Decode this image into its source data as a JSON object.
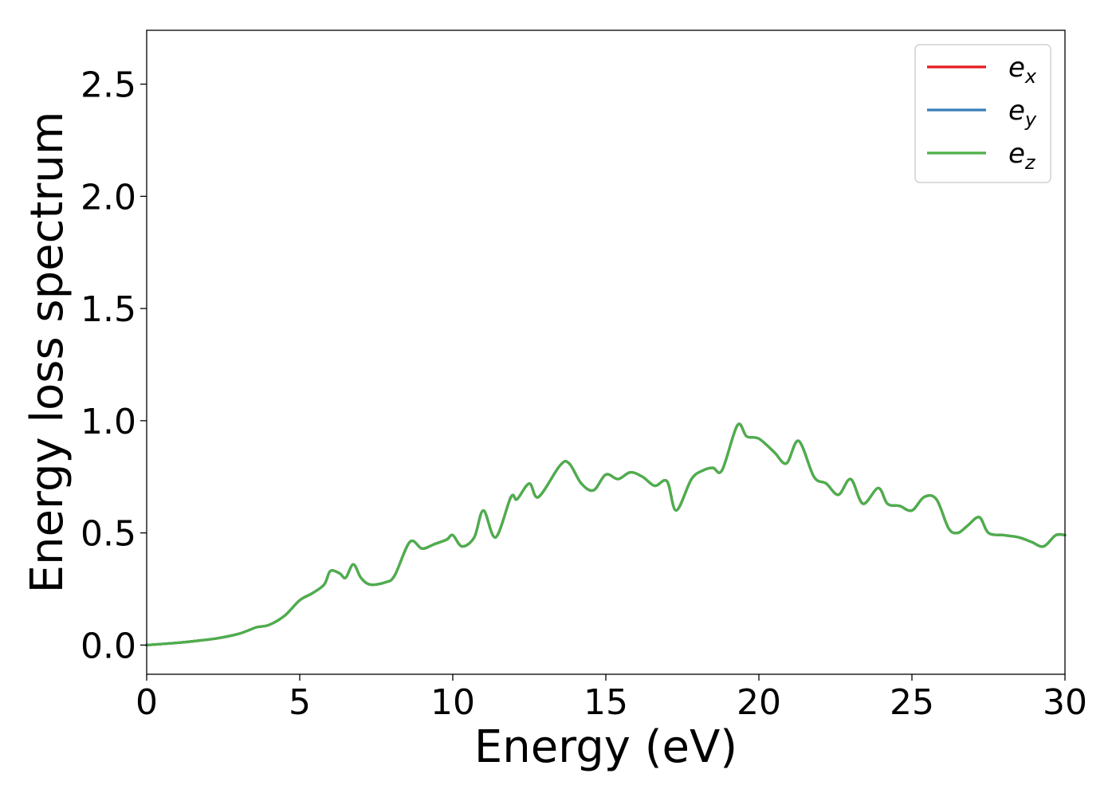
{
  "chart_data": {
    "type": "line",
    "title": "",
    "xlabel": "Energy (eV)",
    "ylabel": "Energy loss spectrum",
    "xlim": [
      0,
      30
    ],
    "ylim": [
      -0.13,
      2.74
    ],
    "xticks": [
      0,
      5,
      10,
      15,
      20,
      25,
      30
    ],
    "xtick_labels": [
      "0",
      "5",
      "10",
      "15",
      "20",
      "25",
      "30"
    ],
    "yticks": [
      0.0,
      0.5,
      1.0,
      1.5,
      2.0,
      2.5
    ],
    "ytick_labels": [
      "0.0",
      "0.5",
      "1.0",
      "1.5",
      "2.0",
      "2.5"
    ],
    "grid": false,
    "legend_position": "top-right",
    "series": [
      {
        "name": "e_x",
        "legend_base": "e",
        "legend_sub": "x",
        "color": "#e41a1c",
        "x": [
          0,
          1,
          1.7,
          2.3,
          3,
          3.4,
          3.6,
          4,
          4.5,
          5,
          5.4,
          5.8,
          6.0,
          6.3,
          6.5,
          6.75,
          7.0,
          7.3,
          7.8,
          8.1,
          8.6,
          9.0,
          9.4,
          9.8,
          10.0,
          10.3,
          10.7,
          11.0,
          11.4,
          11.9,
          12.1,
          12.5,
          12.8,
          13.5,
          13.8,
          14.2,
          14.6,
          15.0,
          15.4,
          15.8,
          16.2,
          16.6,
          17.0,
          17.3,
          17.8,
          18.2,
          18.5,
          18.8,
          19.3,
          19.6,
          20.0,
          20.5,
          20.9,
          21.3,
          21.8,
          22.2,
          22.6,
          23.0,
          23.4,
          23.9,
          24.2,
          24.6,
          25.0,
          25.4,
          25.8,
          26.2,
          26.5,
          26.8,
          27.2,
          27.5,
          28.0,
          28.5,
          28.9,
          29.3,
          29.7,
          30.0
        ],
        "y": [
          0.0,
          0.01,
          0.02,
          0.03,
          0.05,
          0.07,
          0.08,
          0.09,
          0.13,
          0.2,
          0.23,
          0.27,
          0.33,
          0.32,
          0.3,
          0.36,
          0.3,
          0.27,
          0.28,
          0.31,
          0.46,
          0.43,
          0.45,
          0.47,
          0.49,
          0.44,
          0.48,
          0.6,
          0.48,
          0.66,
          0.65,
          0.72,
          0.66,
          0.8,
          0.81,
          0.72,
          0.69,
          0.76,
          0.74,
          0.77,
          0.75,
          0.71,
          0.73,
          0.6,
          0.74,
          0.78,
          0.79,
          0.78,
          0.98,
          0.93,
          0.92,
          0.86,
          0.81,
          0.91,
          0.75,
          0.72,
          0.67,
          0.74,
          0.63,
          0.7,
          0.63,
          0.62,
          0.6,
          0.66,
          0.65,
          0.52,
          0.5,
          0.53,
          0.57,
          0.5,
          0.49,
          0.48,
          0.46,
          0.44,
          0.49,
          0.49
        ]
      },
      {
        "name": "e_y",
        "legend_base": "e",
        "legend_sub": "y",
        "color": "#377eb8",
        "x": [
          0,
          1,
          1.7,
          2.3,
          3,
          3.4,
          3.6,
          4,
          4.5,
          5,
          5.4,
          5.8,
          6.0,
          6.3,
          6.5,
          6.75,
          7.0,
          7.3,
          7.8,
          8.1,
          8.6,
          9.0,
          9.4,
          9.8,
          10.0,
          10.3,
          10.7,
          11.0,
          11.4,
          11.9,
          12.1,
          12.5,
          12.8,
          13.5,
          13.8,
          14.2,
          14.6,
          15.0,
          15.4,
          15.8,
          16.2,
          16.6,
          17.0,
          17.3,
          17.8,
          18.2,
          18.5,
          18.8,
          19.3,
          19.6,
          20.0,
          20.5,
          20.9,
          21.3,
          21.8,
          22.2,
          22.6,
          23.0,
          23.4,
          23.9,
          24.2,
          24.6,
          25.0,
          25.4,
          25.8,
          26.2,
          26.5,
          26.8,
          27.2,
          27.5,
          28.0,
          28.5,
          28.9,
          29.3,
          29.7,
          30.0
        ],
        "y": [
          0.0,
          0.01,
          0.02,
          0.03,
          0.05,
          0.07,
          0.08,
          0.09,
          0.13,
          0.2,
          0.23,
          0.27,
          0.33,
          0.32,
          0.3,
          0.36,
          0.3,
          0.27,
          0.28,
          0.31,
          0.46,
          0.43,
          0.45,
          0.47,
          0.49,
          0.44,
          0.48,
          0.6,
          0.48,
          0.66,
          0.65,
          0.72,
          0.66,
          0.8,
          0.81,
          0.72,
          0.69,
          0.76,
          0.74,
          0.77,
          0.75,
          0.71,
          0.73,
          0.6,
          0.74,
          0.78,
          0.79,
          0.78,
          0.98,
          0.93,
          0.92,
          0.86,
          0.81,
          0.91,
          0.75,
          0.72,
          0.67,
          0.74,
          0.63,
          0.7,
          0.63,
          0.62,
          0.6,
          0.66,
          0.65,
          0.52,
          0.5,
          0.53,
          0.57,
          0.5,
          0.49,
          0.48,
          0.46,
          0.44,
          0.49,
          0.49
        ]
      },
      {
        "name": "e_z",
        "legend_base": "e",
        "legend_sub": "z",
        "color": "#4daf4a",
        "x": [
          0,
          1,
          1.7,
          2.3,
          3,
          3.4,
          3.6,
          4,
          4.5,
          5,
          5.4,
          5.8,
          6.0,
          6.3,
          6.5,
          6.75,
          7.0,
          7.3,
          7.8,
          8.1,
          8.6,
          9.0,
          9.4,
          9.8,
          10.0,
          10.3,
          10.7,
          11.0,
          11.4,
          11.9,
          12.1,
          12.5,
          12.8,
          13.5,
          13.8,
          14.2,
          14.6,
          15.0,
          15.4,
          15.8,
          16.2,
          16.6,
          17.0,
          17.3,
          17.8,
          18.2,
          18.5,
          18.8,
          19.3,
          19.6,
          20.0,
          20.5,
          20.9,
          21.3,
          21.8,
          22.2,
          22.6,
          23.0,
          23.4,
          23.9,
          24.2,
          24.6,
          25.0,
          25.4,
          25.8,
          26.2,
          26.5,
          26.8,
          27.2,
          27.5,
          28.0,
          28.5,
          28.9,
          29.3,
          29.7,
          30.0
        ],
        "y": [
          0.0,
          0.01,
          0.02,
          0.03,
          0.05,
          0.07,
          0.08,
          0.09,
          0.13,
          0.2,
          0.23,
          0.27,
          0.33,
          0.32,
          0.3,
          0.36,
          0.3,
          0.27,
          0.28,
          0.31,
          0.46,
          0.43,
          0.45,
          0.47,
          0.49,
          0.44,
          0.48,
          0.6,
          0.48,
          0.66,
          0.65,
          0.72,
          0.66,
          0.8,
          0.81,
          0.72,
          0.69,
          0.76,
          0.74,
          0.77,
          0.75,
          0.71,
          0.73,
          0.6,
          0.74,
          0.78,
          0.79,
          0.78,
          0.98,
          0.93,
          0.92,
          0.86,
          0.81,
          0.91,
          0.75,
          0.72,
          0.67,
          0.74,
          0.63,
          0.7,
          0.63,
          0.62,
          0.6,
          0.66,
          0.65,
          0.52,
          0.5,
          0.53,
          0.57,
          0.5,
          0.49,
          0.48,
          0.46,
          0.44,
          0.49,
          0.49
        ]
      }
    ]
  }
}
